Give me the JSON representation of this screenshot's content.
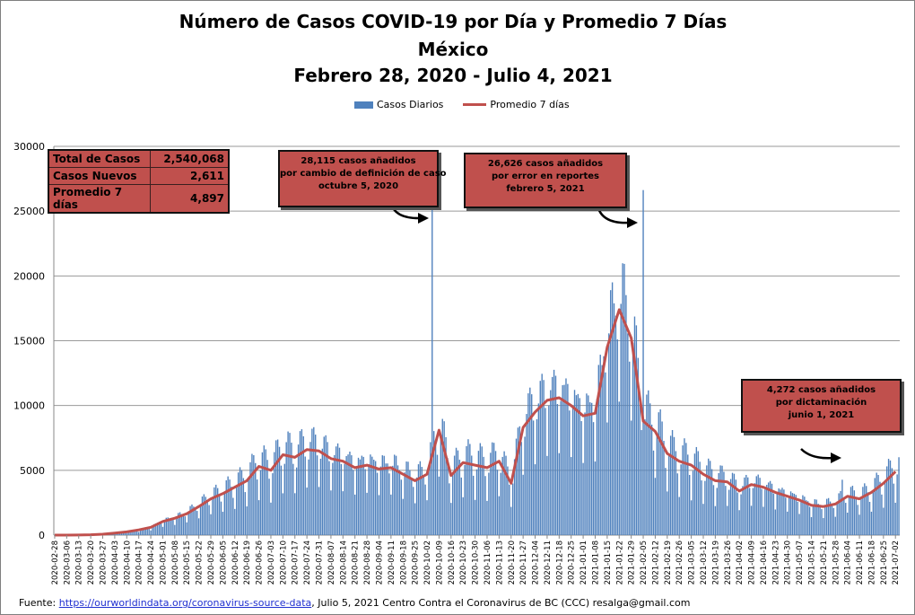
{
  "chart_data": {
    "type": "bar",
    "title": [
      "Número de  Casos  COVID-19 por Día y Promedio 7 Días",
      "México",
      "Febrero 28, 2020 - Julio 4, 2021"
    ],
    "legend": [
      "Casos Diarios",
      "Promedio 7 días"
    ],
    "legend_position": "top-center",
    "series_colors": {
      "bars": "#4f81bd",
      "line": "#c0504d"
    },
    "ylim": [
      0,
      30000
    ],
    "yticks": [
      0,
      5000,
      10000,
      15000,
      20000,
      25000,
      30000
    ],
    "grid": true,
    "x_start": "2020-02-28",
    "x_end": "2021-07-04",
    "xtick_labels": [
      "2020-02-28",
      "2020-03-06",
      "2020-03-13",
      "2020-03-20",
      "2020-03-27",
      "2020-04-03",
      "2020-04-10",
      "2020-04-17",
      "2020-04-24",
      "2020-05-01",
      "2020-05-08",
      "2020-05-15",
      "2020-05-22",
      "2020-05-29",
      "2020-06-05",
      "2020-06-12",
      "2020-06-19",
      "2020-06-26",
      "2020-07-03",
      "2020-07-10",
      "2020-07-17",
      "2020-07-24",
      "2020-07-31",
      "2020-08-07",
      "2020-08-14",
      "2020-08-21",
      "2020-08-28",
      "2020-09-04",
      "2020-09-11",
      "2020-09-18",
      "2020-09-25",
      "2020-10-02",
      "2020-10-09",
      "2020-10-16",
      "2020-10-23",
      "2020-10-30",
      "2020-11-06",
      "2020-11-13",
      "2020-11-20",
      "2020-11-27",
      "2020-12-04",
      "2020-12-11",
      "2020-12-18",
      "2020-12-25",
      "2021-01-01",
      "2021-01-08",
      "2021-01-15",
      "2021-01-22",
      "2021-01-29",
      "2021-02-05",
      "2021-02-12",
      "2021-02-19",
      "2021-02-26",
      "2021-03-05",
      "2021-03-12",
      "2021-03-19",
      "2021-03-26",
      "2021-04-02",
      "2021-04-09",
      "2021-04-16",
      "2021-04-23",
      "2021-04-30",
      "2021-05-07",
      "2021-05-14",
      "2021-05-21",
      "2021-05-28",
      "2021-06-04",
      "2021-06-11",
      "2021-06-18",
      "2021-06-25",
      "2021-07-02"
    ],
    "weekly_avg_7d": [
      {
        "date": "2020-02-28",
        "avg": 0
      },
      {
        "date": "2020-03-06",
        "avg": 1
      },
      {
        "date": "2020-03-13",
        "avg": 5
      },
      {
        "date": "2020-03-20",
        "avg": 25
      },
      {
        "date": "2020-03-27",
        "avg": 70
      },
      {
        "date": "2020-04-03",
        "avg": 150
      },
      {
        "date": "2020-04-10",
        "avg": 250
      },
      {
        "date": "2020-04-17",
        "avg": 400
      },
      {
        "date": "2020-04-24",
        "avg": 600
      },
      {
        "date": "2020-05-01",
        "avg": 1050
      },
      {
        "date": "2020-05-08",
        "avg": 1300
      },
      {
        "date": "2020-05-15",
        "avg": 1650
      },
      {
        "date": "2020-05-22",
        "avg": 2200
      },
      {
        "date": "2020-05-29",
        "avg": 2800
      },
      {
        "date": "2020-06-05",
        "avg": 3200
      },
      {
        "date": "2020-06-12",
        "avg": 3700
      },
      {
        "date": "2020-06-19",
        "avg": 4200
      },
      {
        "date": "2020-06-26",
        "avg": 5300
      },
      {
        "date": "2020-07-03",
        "avg": 5000
      },
      {
        "date": "2020-07-10",
        "avg": 6200
      },
      {
        "date": "2020-07-17",
        "avg": 6000
      },
      {
        "date": "2020-07-24",
        "avg": 6600
      },
      {
        "date": "2020-07-31",
        "avg": 6500
      },
      {
        "date": "2020-08-07",
        "avg": 5900
      },
      {
        "date": "2020-08-14",
        "avg": 5700
      },
      {
        "date": "2020-08-21",
        "avg": 5200
      },
      {
        "date": "2020-08-28",
        "avg": 5400
      },
      {
        "date": "2020-09-04",
        "avg": 5100
      },
      {
        "date": "2020-09-11",
        "avg": 5200
      },
      {
        "date": "2020-09-18",
        "avg": 4700
      },
      {
        "date": "2020-09-25",
        "avg": 4200
      },
      {
        "date": "2020-10-02",
        "avg": 4700
      },
      {
        "date": "2020-10-09",
        "avg": 8100
      },
      {
        "date": "2020-10-16",
        "avg": 4600
      },
      {
        "date": "2020-10-23",
        "avg": 5600
      },
      {
        "date": "2020-10-30",
        "avg": 5400
      },
      {
        "date": "2020-11-06",
        "avg": 5200
      },
      {
        "date": "2020-11-13",
        "avg": 5700
      },
      {
        "date": "2020-11-20",
        "avg": 4000
      },
      {
        "date": "2020-11-27",
        "avg": 8300
      },
      {
        "date": "2020-12-04",
        "avg": 9500
      },
      {
        "date": "2020-12-11",
        "avg": 10400
      },
      {
        "date": "2020-12-18",
        "avg": 10600
      },
      {
        "date": "2020-12-25",
        "avg": 10000
      },
      {
        "date": "2021-01-01",
        "avg": 9200
      },
      {
        "date": "2021-01-08",
        "avg": 9400
      },
      {
        "date": "2021-01-15",
        "avg": 14500
      },
      {
        "date": "2021-01-22",
        "avg": 17400
      },
      {
        "date": "2021-01-29",
        "avg": 15200
      },
      {
        "date": "2021-02-05",
        "avg": 8800
      },
      {
        "date": "2021-02-12",
        "avg": 8000
      },
      {
        "date": "2021-02-19",
        "avg": 6300
      },
      {
        "date": "2021-02-26",
        "avg": 5700
      },
      {
        "date": "2021-03-05",
        "avg": 5400
      },
      {
        "date": "2021-03-12",
        "avg": 4700
      },
      {
        "date": "2021-03-19",
        "avg": 4200
      },
      {
        "date": "2021-03-26",
        "avg": 4100
      },
      {
        "date": "2021-04-02",
        "avg": 3400
      },
      {
        "date": "2021-04-09",
        "avg": 3900
      },
      {
        "date": "2021-04-16",
        "avg": 3700
      },
      {
        "date": "2021-04-23",
        "avg": 3300
      },
      {
        "date": "2021-04-30",
        "avg": 3000
      },
      {
        "date": "2021-05-07",
        "avg": 2700
      },
      {
        "date": "2021-05-14",
        "avg": 2300
      },
      {
        "date": "2021-05-21",
        "avg": 2200
      },
      {
        "date": "2021-05-28",
        "avg": 2400
      },
      {
        "date": "2021-06-04",
        "avg": 3000
      },
      {
        "date": "2021-06-11",
        "avg": 2800
      },
      {
        "date": "2021-06-18",
        "avg": 3300
      },
      {
        "date": "2021-06-25",
        "avg": 4000
      },
      {
        "date": "2021-07-02",
        "avg": 4900
      }
    ],
    "spikes": [
      {
        "date": "2020-10-05",
        "value": 28115
      },
      {
        "date": "2021-02-05",
        "value": 26626
      },
      {
        "date": "2021-06-01",
        "value": 4272
      }
    ],
    "stats_table": [
      {
        "label": "Total de Casos",
        "value": "2,540,068"
      },
      {
        "label": "Casos Nuevos",
        "value": "2,611"
      },
      {
        "label": "Promedio 7 días",
        "value": "4,897"
      }
    ],
    "annotations": [
      {
        "lines": [
          "28,115 casos  añadidos",
          "por cambio de definición de caso",
          "octubre  5, 2020"
        ]
      },
      {
        "lines": [
          "26,626 casos  añadidos",
          "por error en reportes",
          "febrero  5, 2021"
        ]
      },
      {
        "lines": [
          "4,272 casos  añadidos",
          "por dictaminación",
          "junio 1, 2021"
        ]
      }
    ]
  },
  "footer": {
    "prefix": "Fuente:  ",
    "link": "https://ourworldindata.org/coronavirus-source-data",
    "suffix": ", Julio 5, 2021   Centro  Contra el Coronavirus de BC  (CCC) resalga@gmail.com"
  }
}
